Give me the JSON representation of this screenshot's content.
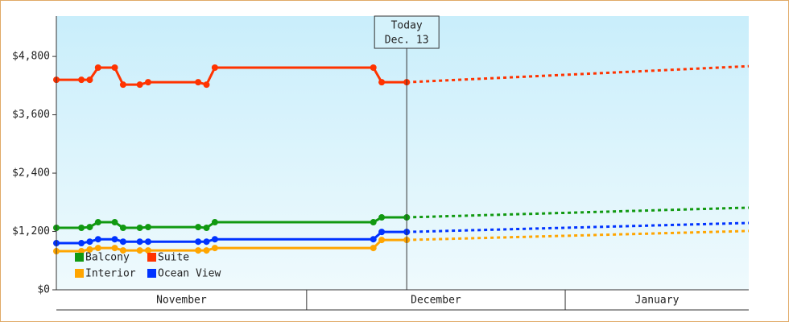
{
  "chart_data": {
    "type": "line",
    "x": [
      0,
      3,
      4,
      5,
      7,
      8,
      10,
      11,
      17,
      18,
      19,
      38,
      39,
      42
    ],
    "xlim": [
      0,
      83
    ],
    "xticks": [
      {
        "value": 0,
        "label": "November"
      },
      {
        "value": 30,
        "label": "December"
      },
      {
        "value": 61,
        "label": "January"
      }
    ],
    "ylim": [
      0,
      5630
    ],
    "yticks": [
      {
        "value": 0,
        "label": "$0"
      },
      {
        "value": 1200,
        "label": "$1,200"
      },
      {
        "value": 2400,
        "label": "$2,400"
      },
      {
        "value": 3600,
        "label": "$3,600"
      },
      {
        "value": 4800,
        "label": "$4,800"
      }
    ],
    "forecast_x": [
      42,
      83
    ],
    "forecast_dash": true,
    "annotation": {
      "x": 42,
      "lines": [
        "Today",
        "Dec. 13"
      ]
    },
    "series": [
      {
        "name": "Balcony",
        "color": "#119911",
        "values": [
          1275,
          1275,
          1290,
          1390,
          1390,
          1275,
          1275,
          1290,
          1290,
          1275,
          1390,
          1390,
          1490,
          1490
        ],
        "forecast_values": [
          1490,
          1690
        ]
      },
      {
        "name": "Suite",
        "color": "#ff3300",
        "values": [
          4320,
          4320,
          4320,
          4570,
          4570,
          4220,
          4220,
          4270,
          4270,
          4220,
          4570,
          4570,
          4270,
          4270
        ],
        "forecast_values": [
          4270,
          4600
        ]
      },
      {
        "name": "Interior",
        "color": "#ffa500",
        "values": [
          795,
          795,
          830,
          860,
          860,
          810,
          810,
          810,
          810,
          810,
          860,
          860,
          1025,
          1025
        ],
        "forecast_values": [
          1025,
          1210
        ]
      },
      {
        "name": "Ocean View",
        "color": "#0033ff",
        "values": [
          960,
          960,
          990,
          1040,
          1040,
          990,
          990,
          990,
          990,
          990,
          1040,
          1040,
          1190,
          1190
        ],
        "forecast_values": [
          1190,
          1375
        ]
      }
    ]
  }
}
